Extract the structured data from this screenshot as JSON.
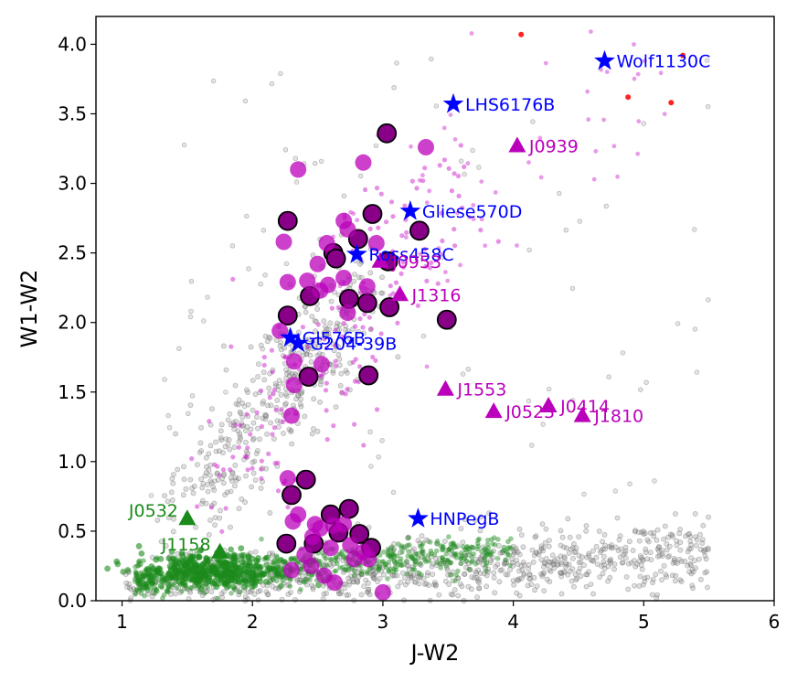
{
  "chart_data": {
    "type": "scatter",
    "title": "",
    "xlabel": "J-W2",
    "ylabel": "W1-W2",
    "xlim": [
      0.8,
      6.0
    ],
    "ylim": [
      0.0,
      4.2
    ],
    "grid": false,
    "x_ticks": [
      1,
      2,
      3,
      4,
      5,
      6
    ],
    "y_ticks": [
      0.0,
      0.5,
      1.0,
      1.5,
      2.0,
      2.5,
      3.0,
      3.5,
      4.0
    ],
    "colors": {
      "field_gray": "#888888",
      "small_magenta": "#cc22cc",
      "large_magenta": "#bb00bb",
      "green": "#1a8a1a",
      "blue": "#0000ff",
      "red": "#ff2222",
      "outline": "#000000"
    },
    "background_regions": [
      {
        "name": "gray-field-main",
        "color": "#888888",
        "x_range": [
          1.0,
          5.6
        ],
        "y_range": [
          0.0,
          0.8
        ]
      },
      {
        "name": "gray-field-branch",
        "color": "#888888",
        "x_range": [
          1.4,
          3.4
        ],
        "y_range": [
          0.8,
          2.4
        ]
      },
      {
        "name": "green-sequence",
        "color": "#1a8a1a",
        "x_range": [
          1.05,
          3.9
        ],
        "y_range": [
          0.05,
          0.65
        ]
      },
      {
        "name": "magenta-field",
        "color": "#cc22cc",
        "x_range": [
          1.6,
          5.3
        ],
        "y_range": [
          0.3,
          4.2
        ]
      }
    ],
    "series": [
      {
        "name": "Outlined objects",
        "marker": "circle",
        "color": "#880088",
        "edgecolor": "#000000",
        "points": [
          [
            3.03,
            3.36
          ],
          [
            2.27,
            2.73
          ],
          [
            2.92,
            2.78
          ],
          [
            3.28,
            2.66
          ],
          [
            2.81,
            2.6
          ],
          [
            2.62,
            2.5
          ],
          [
            2.64,
            2.46
          ],
          [
            3.04,
            2.44
          ],
          [
            2.44,
            2.19
          ],
          [
            2.74,
            2.17
          ],
          [
            2.88,
            2.14
          ],
          [
            3.05,
            2.11
          ],
          [
            2.27,
            2.05
          ],
          [
            3.49,
            2.02
          ],
          [
            2.43,
            1.61
          ],
          [
            2.89,
            1.62
          ],
          [
            2.41,
            0.87
          ],
          [
            2.3,
            0.76
          ],
          [
            2.6,
            0.62
          ],
          [
            2.74,
            0.66
          ],
          [
            2.66,
            0.49
          ],
          [
            2.82,
            0.48
          ],
          [
            2.26,
            0.41
          ],
          [
            2.47,
            0.41
          ],
          [
            2.91,
            0.38
          ]
        ]
      },
      {
        "name": "Large magenta objects",
        "marker": "circle",
        "color": "#bb00bb",
        "points": [
          [
            2.35,
            3.1
          ],
          [
            2.85,
            3.15
          ],
          [
            3.33,
            3.26
          ],
          [
            2.24,
            2.58
          ],
          [
            2.7,
            2.73
          ],
          [
            2.73,
            2.67
          ],
          [
            2.95,
            2.57
          ],
          [
            2.57,
            2.57
          ],
          [
            2.5,
            2.42
          ],
          [
            2.27,
            2.29
          ],
          [
            2.42,
            2.3
          ],
          [
            2.52,
            2.23
          ],
          [
            2.58,
            2.27
          ],
          [
            2.7,
            2.32
          ],
          [
            2.88,
            2.26
          ],
          [
            2.73,
            2.07
          ],
          [
            2.21,
            1.94
          ],
          [
            2.32,
            1.72
          ],
          [
            2.53,
            1.7
          ],
          [
            2.32,
            1.55
          ],
          [
            2.3,
            1.33
          ],
          [
            2.27,
            0.88
          ],
          [
            2.35,
            0.62
          ],
          [
            2.31,
            0.57
          ],
          [
            2.48,
            0.55
          ],
          [
            2.52,
            0.52
          ],
          [
            2.62,
            0.54
          ],
          [
            2.7,
            0.55
          ],
          [
            2.46,
            0.46
          ],
          [
            2.6,
            0.38
          ],
          [
            2.75,
            0.4
          ],
          [
            2.78,
            0.3
          ],
          [
            2.85,
            0.35
          ],
          [
            2.4,
            0.33
          ],
          [
            2.3,
            0.22
          ],
          [
            2.55,
            0.18
          ],
          [
            2.45,
            0.25
          ],
          [
            2.63,
            0.13
          ],
          [
            3.0,
            0.06
          ],
          [
            2.89,
            0.3
          ]
        ]
      },
      {
        "name": "Reference stars (blue)",
        "marker": "star",
        "color": "#0000ff",
        "points": [
          [
            4.7,
            3.88
          ],
          [
            3.54,
            3.57
          ],
          [
            3.21,
            2.8
          ],
          [
            2.8,
            2.49
          ],
          [
            2.29,
            1.89
          ],
          [
            2.35,
            1.85
          ],
          [
            3.27,
            0.59
          ]
        ],
        "labels": [
          "Wolf1130C",
          "LHS6176B",
          "Gliese570D",
          "Ross458C",
          "Gl576B",
          "G204-39B",
          "HNPegB"
        ]
      },
      {
        "name": "Triangles (magenta)",
        "marker": "triangle",
        "color": "#bb00bb",
        "points": [
          [
            4.03,
            3.27
          ],
          [
            3.13,
            2.2
          ],
          [
            3.48,
            1.52
          ],
          [
            3.85,
            1.36
          ],
          [
            4.27,
            1.4
          ],
          [
            4.53,
            1.33
          ],
          [
            2.98,
            2.44
          ]
        ],
        "labels": [
          "J0939",
          "J1316",
          "J1553",
          "J0523",
          "J0414",
          "J1810",
          "J0953"
        ]
      },
      {
        "name": "Triangles (green)",
        "marker": "triangle",
        "color": "#1a8a1a",
        "points": [
          [
            1.5,
            0.59
          ],
          [
            1.75,
            0.35
          ]
        ],
        "labels": [
          "J0532",
          "J1158"
        ]
      },
      {
        "name": "Red points",
        "marker": "circle",
        "color": "#ff2222",
        "points": [
          [
            4.88,
            3.62
          ],
          [
            5.21,
            3.58
          ],
          [
            5.3,
            3.92
          ],
          [
            4.06,
            4.07
          ]
        ]
      }
    ]
  }
}
